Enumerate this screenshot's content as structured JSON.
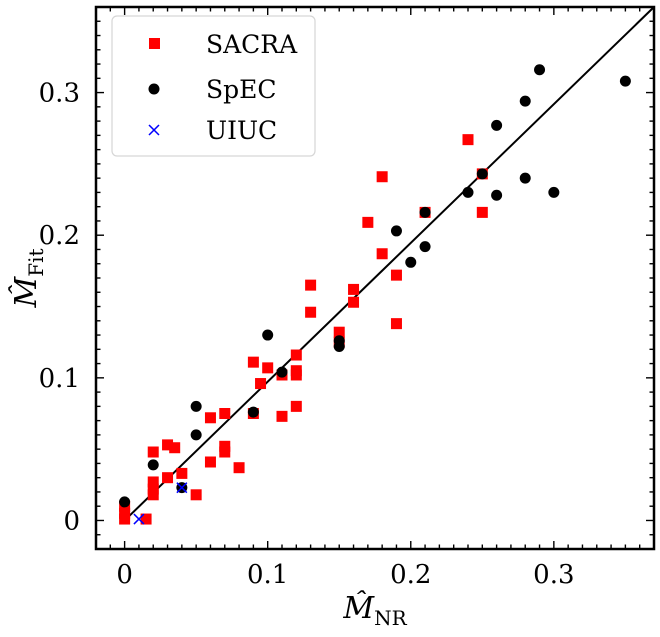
{
  "chart_data": {
    "type": "scatter",
    "xlabel": "M̂",
    "xlabel_sub": "NR",
    "ylabel": "M̂",
    "ylabel_sub": "Fit",
    "xlim": [
      -0.02,
      0.37
    ],
    "ylim": [
      -0.02,
      0.36
    ],
    "x_ticks": [
      0,
      0.1,
      0.2,
      0.3
    ],
    "x_tick_labels": [
      "0",
      "0.1",
      "0.2",
      "0.3"
    ],
    "y_ticks": [
      0,
      0.1,
      0.2,
      0.3
    ],
    "y_tick_labels": [
      "0",
      "0.1",
      "0.2",
      "0.3"
    ],
    "grid": false,
    "legend_position": "top-left",
    "reference_line": [
      [
        0,
        0
      ],
      [
        0.37,
        0.36
      ]
    ],
    "series": [
      {
        "name": "SACRA",
        "marker": "square",
        "color": "#ff0000",
        "points": [
          [
            0,
            0.001
          ],
          [
            0,
            0.005
          ],
          [
            0,
            0.01
          ],
          [
            0.015,
            0.001
          ],
          [
            0.02,
            0.018
          ],
          [
            0.02,
            0.022
          ],
          [
            0.02,
            0.027
          ],
          [
            0.02,
            0.048
          ],
          [
            0.03,
            0.03
          ],
          [
            0.03,
            0.053
          ],
          [
            0.035,
            0.051
          ],
          [
            0.04,
            0.033
          ],
          [
            0.05,
            0.018
          ],
          [
            0.06,
            0.041
          ],
          [
            0.06,
            0.072
          ],
          [
            0.07,
            0.048
          ],
          [
            0.07,
            0.052
          ],
          [
            0.07,
            0.075
          ],
          [
            0.08,
            0.037
          ],
          [
            0.09,
            0.075
          ],
          [
            0.09,
            0.111
          ],
          [
            0.095,
            0.096
          ],
          [
            0.1,
            0.107
          ],
          [
            0.11,
            0.073
          ],
          [
            0.11,
            0.102
          ],
          [
            0.12,
            0.08
          ],
          [
            0.12,
            0.102
          ],
          [
            0.12,
            0.105
          ],
          [
            0.12,
            0.116
          ],
          [
            0.13,
            0.146
          ],
          [
            0.13,
            0.165
          ],
          [
            0.15,
            0.125
          ],
          [
            0.15,
            0.132
          ],
          [
            0.16,
            0.153
          ],
          [
            0.16,
            0.162
          ],
          [
            0.17,
            0.209
          ],
          [
            0.18,
            0.187
          ],
          [
            0.18,
            0.241
          ],
          [
            0.19,
            0.138
          ],
          [
            0.19,
            0.172
          ],
          [
            0.21,
            0.216
          ],
          [
            0.24,
            0.267
          ],
          [
            0.25,
            0.216
          ],
          [
            0.25,
            0.243
          ]
        ]
      },
      {
        "name": "SpEC",
        "marker": "circle",
        "color": "#000000",
        "points": [
          [
            0,
            0.013
          ],
          [
            0.02,
            0.039
          ],
          [
            0.04,
            0.023
          ],
          [
            0.05,
            0.06
          ],
          [
            0.05,
            0.08
          ],
          [
            0.09,
            0.076
          ],
          [
            0.1,
            0.13
          ],
          [
            0.11,
            0.104
          ],
          [
            0.15,
            0.122
          ],
          [
            0.15,
            0.126
          ],
          [
            0.19,
            0.203
          ],
          [
            0.2,
            0.181
          ],
          [
            0.21,
            0.192
          ],
          [
            0.21,
            0.216
          ],
          [
            0.24,
            0.23
          ],
          [
            0.25,
            0.243
          ],
          [
            0.26,
            0.228
          ],
          [
            0.26,
            0.277
          ],
          [
            0.28,
            0.24
          ],
          [
            0.28,
            0.294
          ],
          [
            0.29,
            0.316
          ],
          [
            0.3,
            0.23
          ],
          [
            0.35,
            0.308
          ]
        ]
      },
      {
        "name": "UIUC",
        "marker": "x",
        "color": "#0000ff",
        "points": [
          [
            0.01,
            0.001
          ],
          [
            0.04,
            0.023
          ]
        ]
      }
    ]
  }
}
